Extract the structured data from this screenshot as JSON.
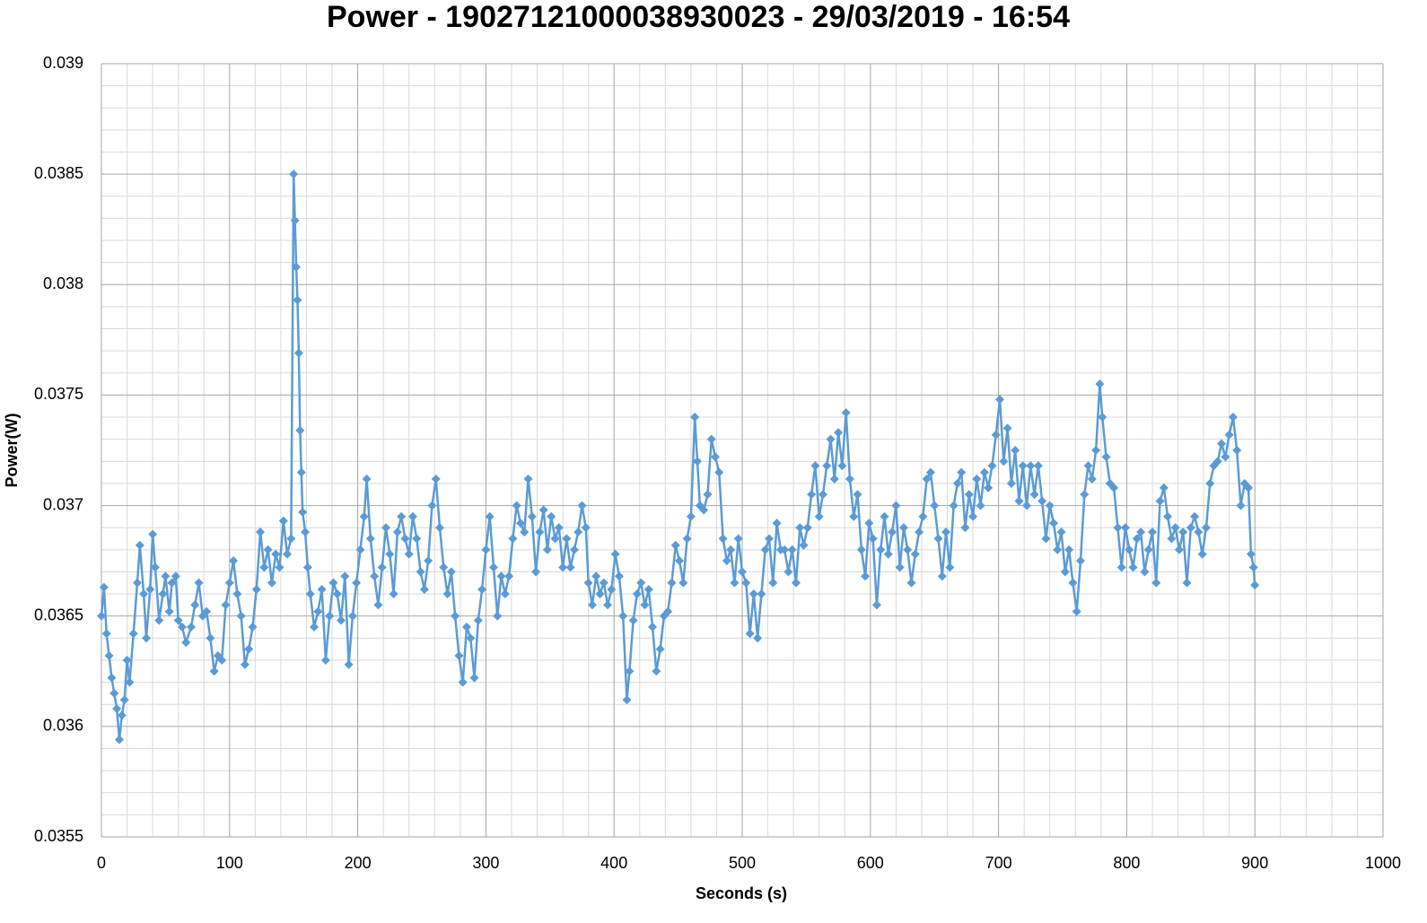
{
  "chart_data": {
    "type": "line",
    "title": "Power - 1902712100003893​0023 - 29/03/2019 - 16:54",
    "x_label": "Seconds (s)",
    "y_label": "Power(W)",
    "color": "#5b9bd5",
    "marker": "diamond",
    "grid": true,
    "minor_grid_divisions": 5,
    "xlim": [
      0,
      1000
    ],
    "xticks": [
      0,
      100,
      200,
      300,
      400,
      500,
      600,
      700,
      800,
      900,
      1000
    ],
    "ylim": [
      0.0355,
      0.039
    ],
    "yticks": [
      0.0355,
      0.036,
      0.0365,
      0.037,
      0.0375,
      0.038,
      0.0385,
      0.039
    ],
    "x": [
      0,
      2,
      4,
      6,
      8,
      10,
      12,
      14,
      16,
      18,
      20,
      22,
      25,
      28,
      30,
      33,
      35,
      38,
      40,
      42,
      45,
      48,
      50,
      53,
      55,
      58,
      60,
      63,
      66,
      70,
      73,
      76,
      79,
      82,
      85,
      88,
      91,
      94,
      97,
      100,
      103,
      106,
      109,
      112,
      115,
      118,
      121,
      124,
      127,
      130,
      133,
      136,
      139,
      142,
      145,
      148,
      150,
      151,
      152,
      153,
      154,
      155,
      156,
      157,
      159,
      161,
      163,
      166,
      169,
      172,
      175,
      178,
      181,
      184,
      187,
      190,
      193,
      196,
      199,
      202,
      205,
      207,
      210,
      213,
      216,
      219,
      222,
      225,
      228,
      231,
      234,
      237,
      240,
      243,
      246,
      249,
      252,
      255,
      258,
      261,
      264,
      267,
      270,
      273,
      276,
      279,
      282,
      285,
      288,
      291,
      294,
      297,
      300,
      303,
      306,
      309,
      312,
      315,
      318,
      321,
      324,
      327,
      330,
      333,
      336,
      339,
      342,
      345,
      348,
      351,
      354,
      357,
      360,
      363,
      366,
      369,
      372,
      375,
      378,
      380,
      383,
      386,
      389,
      392,
      395,
      398,
      401,
      404,
      407,
      410,
      412,
      415,
      418,
      421,
      424,
      427,
      430,
      433,
      436,
      439,
      442,
      445,
      448,
      451,
      454,
      457,
      460,
      463,
      465,
      467,
      470,
      473,
      476,
      479,
      482,
      485,
      488,
      491,
      494,
      497,
      500,
      503,
      506,
      509,
      512,
      515,
      518,
      521,
      524,
      527,
      530,
      533,
      536,
      539,
      542,
      545,
      548,
      551,
      554,
      557,
      560,
      563,
      566,
      569,
      572,
      575,
      578,
      581,
      584,
      587,
      590,
      593,
      596,
      599,
      602,
      605,
      608,
      611,
      614,
      617,
      620,
      623,
      626,
      629,
      632,
      635,
      638,
      641,
      644,
      647,
      650,
      653,
      656,
      659,
      662,
      665,
      668,
      671,
      674,
      677,
      680,
      683,
      686,
      689,
      692,
      695,
      698,
      701,
      704,
      707,
      710,
      713,
      716,
      719,
      722,
      725,
      728,
      731,
      734,
      737,
      740,
      743,
      746,
      749,
      752,
      755,
      758,
      761,
      764,
      767,
      770,
      773,
      776,
      779,
      781,
      784,
      787,
      790,
      793,
      796,
      799,
      802,
      805,
      808,
      811,
      814,
      817,
      820,
      823,
      826,
      829,
      832,
      835,
      838,
      841,
      844,
      847,
      850,
      853,
      856,
      859,
      862,
      865,
      868,
      871,
      874,
      877,
      880,
      883,
      886,
      889,
      892,
      895,
      897,
      899,
      900
    ],
    "values": [
      0.0365,
      0.03663,
      0.03642,
      0.03632,
      0.03622,
      0.03615,
      0.03608,
      0.03594,
      0.03605,
      0.03612,
      0.0363,
      0.0362,
      0.03642,
      0.03665,
      0.03682,
      0.0366,
      0.0364,
      0.03662,
      0.03687,
      0.03672,
      0.03648,
      0.0366,
      0.03668,
      0.03652,
      0.03665,
      0.03668,
      0.03648,
      0.03645,
      0.03638,
      0.03645,
      0.03655,
      0.03665,
      0.0365,
      0.03652,
      0.0364,
      0.03625,
      0.03632,
      0.0363,
      0.03655,
      0.03665,
      0.03675,
      0.0366,
      0.0365,
      0.03628,
      0.03635,
      0.03645,
      0.03662,
      0.03688,
      0.03672,
      0.0368,
      0.03665,
      0.03678,
      0.03672,
      0.03693,
      0.03678,
      0.03685,
      0.0385,
      0.03829,
      0.03808,
      0.03793,
      0.03769,
      0.03734,
      0.03715,
      0.03697,
      0.03688,
      0.03672,
      0.0366,
      0.03645,
      0.03652,
      0.03662,
      0.0363,
      0.0365,
      0.03665,
      0.0366,
      0.03648,
      0.03668,
      0.03628,
      0.0365,
      0.03665,
      0.0368,
      0.03695,
      0.03712,
      0.03685,
      0.03668,
      0.03655,
      0.03672,
      0.0369,
      0.03678,
      0.0366,
      0.03688,
      0.03695,
      0.03685,
      0.03678,
      0.03695,
      0.03685,
      0.0367,
      0.03662,
      0.03675,
      0.037,
      0.03712,
      0.0369,
      0.03672,
      0.0366,
      0.0367,
      0.0365,
      0.03632,
      0.0362,
      0.03645,
      0.0364,
      0.03622,
      0.03648,
      0.03662,
      0.0368,
      0.03695,
      0.03672,
      0.0365,
      0.03668,
      0.0366,
      0.03668,
      0.03685,
      0.037,
      0.03692,
      0.03688,
      0.03712,
      0.03695,
      0.0367,
      0.03688,
      0.03698,
      0.0368,
      0.03695,
      0.03685,
      0.0369,
      0.03672,
      0.03685,
      0.03672,
      0.0368,
      0.03688,
      0.037,
      0.0369,
      0.03665,
      0.03655,
      0.03668,
      0.0366,
      0.03665,
      0.03655,
      0.03662,
      0.03678,
      0.03668,
      0.0365,
      0.03612,
      0.03625,
      0.03648,
      0.0366,
      0.03665,
      0.03655,
      0.03662,
      0.03645,
      0.03625,
      0.03635,
      0.0365,
      0.03652,
      0.03665,
      0.03682,
      0.03675,
      0.03665,
      0.03685,
      0.03695,
      0.0374,
      0.0372,
      0.037,
      0.03698,
      0.03705,
      0.0373,
      0.03722,
      0.03715,
      0.03685,
      0.03675,
      0.0368,
      0.03665,
      0.03685,
      0.0367,
      0.03665,
      0.03642,
      0.0366,
      0.0364,
      0.0366,
      0.0368,
      0.03685,
      0.03665,
      0.03692,
      0.0368,
      0.0368,
      0.0367,
      0.0368,
      0.03665,
      0.0369,
      0.03682,
      0.0369,
      0.03705,
      0.03718,
      0.03695,
      0.03705,
      0.03718,
      0.0373,
      0.03712,
      0.03733,
      0.03718,
      0.03742,
      0.03712,
      0.03695,
      0.03705,
      0.0368,
      0.03668,
      0.03692,
      0.03685,
      0.03655,
      0.0368,
      0.03695,
      0.03678,
      0.03688,
      0.037,
      0.03672,
      0.0369,
      0.0368,
      0.03665,
      0.03678,
      0.03688,
      0.03695,
      0.03712,
      0.03715,
      0.037,
      0.03685,
      0.03668,
      0.03688,
      0.03672,
      0.037,
      0.0371,
      0.03715,
      0.0369,
      0.03705,
      0.03695,
      0.03712,
      0.037,
      0.03715,
      0.03708,
      0.03718,
      0.03732,
      0.03748,
      0.0372,
      0.03735,
      0.0371,
      0.03725,
      0.03702,
      0.03718,
      0.037,
      0.03718,
      0.03705,
      0.03718,
      0.03702,
      0.03685,
      0.037,
      0.03692,
      0.0368,
      0.03688,
      0.0367,
      0.0368,
      0.03665,
      0.03652,
      0.03675,
      0.03705,
      0.03718,
      0.03712,
      0.03725,
      0.03755,
      0.0374,
      0.03722,
      0.0371,
      0.03708,
      0.0369,
      0.03672,
      0.0369,
      0.0368,
      0.03672,
      0.03685,
      0.03688,
      0.0367,
      0.0368,
      0.03688,
      0.03665,
      0.03702,
      0.03708,
      0.03695,
      0.03685,
      0.0369,
      0.0368,
      0.03688,
      0.03665,
      0.0369,
      0.03695,
      0.03688,
      0.03678,
      0.0369,
      0.0371,
      0.03718,
      0.0372,
      0.03728,
      0.03722,
      0.03732,
      0.0374,
      0.03725,
      0.037,
      0.0371,
      0.03708,
      0.03678,
      0.03672,
      0.03664
    ]
  }
}
